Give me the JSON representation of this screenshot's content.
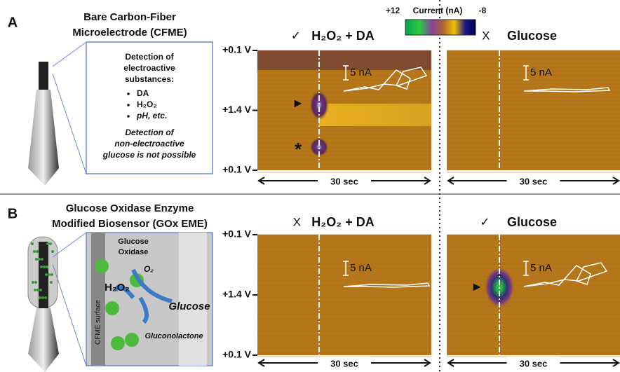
{
  "colorbar": {
    "max": "+12",
    "label": "Current (nA)",
    "min": "-8"
  },
  "panels": [
    {
      "letter": "A",
      "title": [
        "Bare Carbon-Fiber",
        "Microelectrode (CFME)"
      ],
      "callout": {
        "heading": [
          "Detection of",
          "electroactive",
          "substances:"
        ],
        "bullets": [
          "DA",
          "H₂O₂",
          "pH, etc."
        ],
        "note": [
          "Detection of",
          "non-electroactive",
          "glucose is not possible"
        ]
      },
      "y_labels": [
        "+0.1 V",
        "+1.4 V",
        "+0.1 V"
      ],
      "plots": [
        {
          "mark": "✓",
          "title": "H₂O₂ + DA",
          "scale": "5 nA",
          "time": "30 sec",
          "marker": "▶",
          "marker2": "*"
        },
        {
          "mark": "X",
          "title": "Glucose",
          "scale": "5 nA",
          "time": "30 sec"
        }
      ]
    },
    {
      "letter": "B",
      "title": [
        "Glucose Oxidase Enzyme",
        "Modified Biosensor (GOx EME)"
      ],
      "callout": {
        "enzyme": [
          "Glucose",
          "Oxidase"
        ],
        "o2": "O₂",
        "h2o2": "H₂O₂",
        "glucose": "Glucose",
        "product": "Gluconolactone",
        "surface": "CFME surface"
      },
      "y_labels": [
        "+0.1 V",
        "+1.4 V",
        "+0.1 V"
      ],
      "plots": [
        {
          "mark": "X",
          "title": "H₂O₂ + DA",
          "scale": "5 nA",
          "time": "30 sec"
        },
        {
          "mark": "✓",
          "title": "Glucose",
          "scale": "5 nA",
          "time": "30 sec",
          "marker": "▶"
        }
      ]
    }
  ]
}
